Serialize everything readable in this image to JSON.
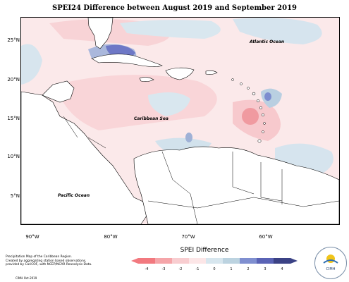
{
  "title": "SPEI24 Difference between August 2019 and September 2019",
  "lat_labels": [
    "25°N",
    "20°N",
    "15°N",
    "10°N",
    "5°N"
  ],
  "lon_labels": [
    "90°W",
    "80°W",
    "70°W",
    "60°W"
  ],
  "map_labels": {
    "atlantic": "Atlantic Ocean",
    "caribbean": "Caribbean Sea",
    "pacific": "Pacific Ocean"
  },
  "legend": {
    "title": "SPEI Difference",
    "ticks": [
      "-4",
      "-3",
      "-2",
      "-1",
      "0",
      "1",
      "2",
      "3",
      "4"
    ],
    "colors": [
      "#f2797f",
      "#f5a5a9",
      "#f8cdd0",
      "#fce6e7",
      "#d7e6ee",
      "#bcd3e0",
      "#7f8fd0",
      "#5a63b5",
      "#3b4285"
    ]
  },
  "footnote": {
    "line1": "Precipitation Map of the Caribbean Region.",
    "line2": "Created by aggregating station based observations,",
    "line3": "provided by CariCOF, with NCEP/NCAR Reanalysis Data."
  },
  "credit": "CIMH Oct-2019",
  "logo_text": "CIMH"
}
